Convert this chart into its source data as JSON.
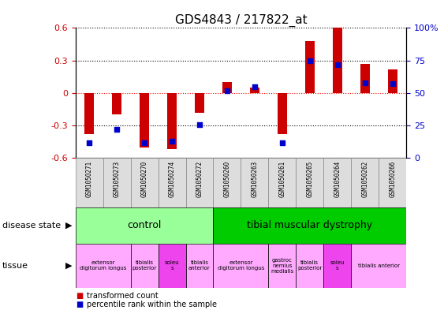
{
  "title": "GDS4843 / 217822_at",
  "samples": [
    "GSM1050271",
    "GSM1050273",
    "GSM1050270",
    "GSM1050274",
    "GSM1050272",
    "GSM1050260",
    "GSM1050263",
    "GSM1050261",
    "GSM1050265",
    "GSM1050264",
    "GSM1050262",
    "GSM1050266"
  ],
  "transformed_count": [
    -0.38,
    -0.2,
    -0.5,
    -0.52,
    -0.18,
    0.1,
    0.05,
    -0.38,
    0.48,
    0.6,
    0.27,
    0.22
  ],
  "percentile_rank": [
    12,
    22,
    12,
    13,
    26,
    52,
    55,
    12,
    75,
    72,
    58,
    57
  ],
  "ylim": [
    -0.6,
    0.6
  ],
  "yticks_left": [
    -0.6,
    -0.3,
    0.0,
    0.3,
    0.6
  ],
  "ytick_left_labels": [
    "-0.6",
    "-0.3",
    "0",
    "0.3",
    "0.6"
  ],
  "right_ytick_pcts": [
    0,
    25,
    50,
    75,
    100
  ],
  "right_ylabels": [
    "0",
    "25",
    "50",
    "75",
    "100%"
  ],
  "bar_color": "#cc0000",
  "dot_color": "#0000cc",
  "xticklabel_bg": "#dddddd",
  "disease_control_color": "#99ff99",
  "disease_tmd_color": "#00cc00",
  "tissue_light_color": "#ffaaff",
  "tissue_dark_color": "#ee44ee",
  "tissue_groups": [
    {
      "start": 0,
      "end": 2,
      "label": "extensor\ndigitorum longus",
      "dark": false
    },
    {
      "start": 2,
      "end": 3,
      "label": "tibialis\nposterior",
      "dark": false
    },
    {
      "start": 3,
      "end": 4,
      "label": "soleu\ns",
      "dark": true
    },
    {
      "start": 4,
      "end": 5,
      "label": "tibialis\nanterior",
      "dark": false
    },
    {
      "start": 5,
      "end": 7,
      "label": "extensor\ndigitorum longus",
      "dark": false
    },
    {
      "start": 7,
      "end": 8,
      "label": "gastroc\nnemius\nmedialis",
      "dark": false
    },
    {
      "start": 8,
      "end": 9,
      "label": "tibialis\nposterior",
      "dark": false
    },
    {
      "start": 9,
      "end": 10,
      "label": "soleu\ns",
      "dark": true
    },
    {
      "start": 10,
      "end": 12,
      "label": "tibialis anterior",
      "dark": false
    }
  ]
}
